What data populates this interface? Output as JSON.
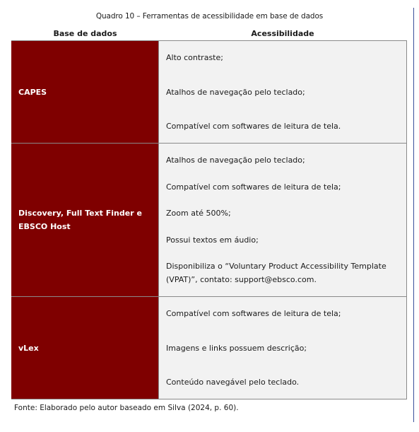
{
  "caption": "Quadro 10 – Ferramentas de acessibilidade em base de dados",
  "headers": {
    "base": "Base de dados",
    "acessibilidade": "Acessibilidade"
  },
  "rows": [
    {
      "base": "CAPES",
      "items": [
        "Alto contraste;",
        "Atalhos de navegação pelo teclado;",
        "Compatível com softwares de leitura de tela."
      ]
    },
    {
      "base": "Discovery, Full Text Finder e EBSCO Host",
      "items": [
        "Atalhos de navegação pelo teclado;",
        "Compatível com softwares de leitura de tela;",
        "Zoom até 500%;",
        "Possui textos em áudio;",
        "Disponibiliza o “Voluntary Product Accessibility Template (VPAT)”, contato: support@ebsco.com."
      ]
    },
    {
      "base": "vLex",
      "items": [
        "Compatível com softwares de leitura de tela;",
        "Imagens e links possuem descrição;",
        "Conteúdo navegável pelo teclado."
      ]
    }
  ],
  "source": "Fonte: Elaborado pelo autor baseado em Silva (2024, p. 60).",
  "colors": {
    "header_cell": "#7f0000",
    "content_cell": "#f2f2f2",
    "border": "#8a8a8a"
  }
}
